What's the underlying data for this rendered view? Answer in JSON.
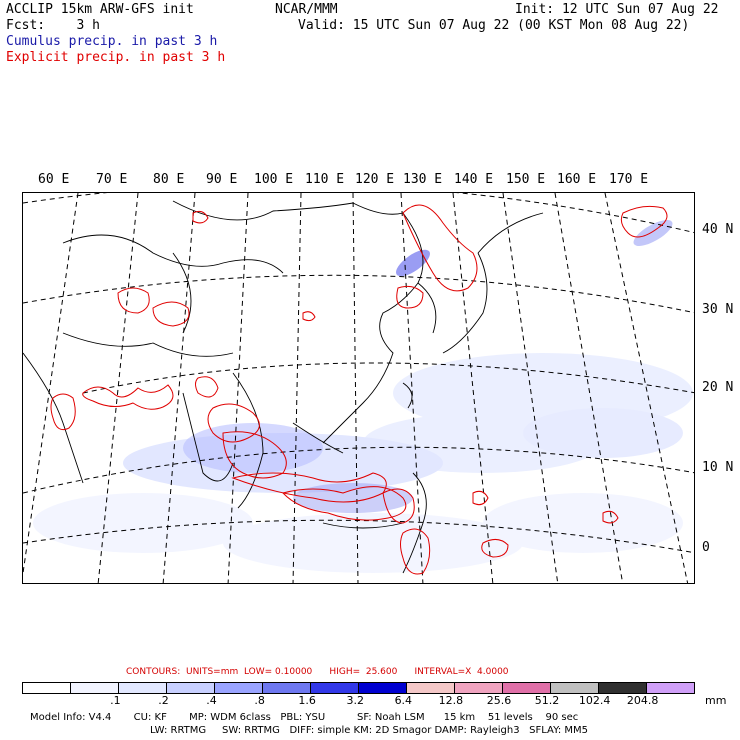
{
  "header": {
    "left_line1": "ACCLIP 15km ARW-GFS init",
    "left_line2": "Fcst:    3 h",
    "center": "NCAR/MMM",
    "right_line1": "Init: 12 UTC Sun 07 Aug 22",
    "right_line2": "Valid: 15 UTC Sun 07 Aug 22 (00 KST Mon 08 Aug 22)",
    "legend_cumulus": "Cumulus precip. in past 3 h",
    "legend_explicit": "Explicit precip. in past 3 h",
    "cumulus_color": "#1a1aa8",
    "explicit_color": "#e00000"
  },
  "longitude_labels": [
    "60 E",
    "70 E",
    "80 E",
    "90 E",
    "100 E",
    "110 E",
    "120 E",
    "130 E",
    "140 E",
    "150 E",
    "160 E",
    "170 E"
  ],
  "latitude_labels": [
    "40 N",
    "30 N",
    "20 N",
    "10 N",
    "0"
  ],
  "contours": {
    "text": "CONTOURS:  UNITS=mm  LOW= 0.10000      HIGH=  25.600      INTERVAL=X  4.0000"
  },
  "colorbar": {
    "colors": [
      "#ffffff",
      "#f2f4ff",
      "#e2e8ff",
      "#c8d0ff",
      "#9aa4ff",
      "#6e78f0",
      "#3238e8",
      "#0000d0",
      "#f4c8c8",
      "#f0a4c0",
      "#e070a8",
      "#c0c0c0",
      "#303030",
      "#d0a0f8"
    ],
    "ticks": [
      ".1",
      ".2",
      ".4",
      ".8",
      "1.6",
      "3.2",
      "6.4",
      "12.8",
      "25.6",
      "51.2",
      "102.4",
      "204.8"
    ],
    "units": "mm"
  },
  "model_info": {
    "line1": "Model Info: V4.4       CU: KF       MP: WDM 6class   PBL: YSU          SF: Noah LSM      15 km    51 levels    90 sec",
    "line2": "LW: RRTMG     SW: RRTMG   DIFF: simple KM: 2D Smagor DAMP: Rayleigh3   SFLAY: MM5"
  }
}
